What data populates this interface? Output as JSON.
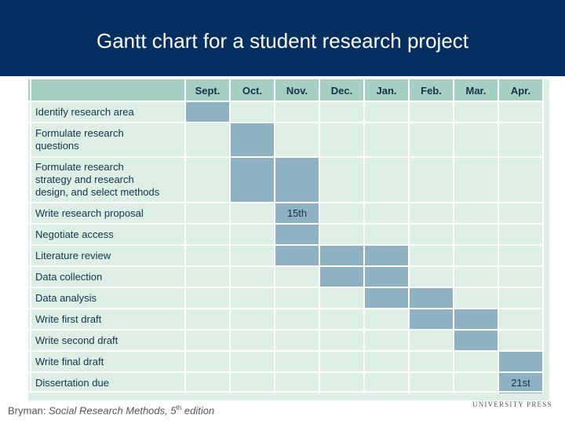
{
  "slide": {
    "title": "Gantt chart for a student research project"
  },
  "chart_data": {
    "type": "table",
    "months": [
      "Sept.",
      "Oct.",
      "Nov.",
      "Dec.",
      "Jan.",
      "Feb.",
      "Mar.",
      "Apr."
    ],
    "tasks": [
      {
        "label": "Identify research area",
        "months": [
          "Sept."
        ]
      },
      {
        "label": "Formulate research\nquestions",
        "months": [
          "Oct."
        ]
      },
      {
        "label": "Formulate research\nstrategy and research\ndesign, and select methods",
        "months": [
          "Oct.",
          "Nov."
        ]
      },
      {
        "label": "Write research proposal",
        "months": [
          "Nov."
        ],
        "marker": "15th"
      },
      {
        "label": "Negotiate access",
        "months": [
          "Nov."
        ]
      },
      {
        "label": "Literature review",
        "months": [
          "Nov.",
          "Dec.",
          "Jan."
        ]
      },
      {
        "label": "Data collection",
        "months": [
          "Dec.",
          "Jan."
        ]
      },
      {
        "label": "Data analysis",
        "months": [
          "Jan.",
          "Feb."
        ]
      },
      {
        "label": "Write first draft",
        "months": [
          "Feb.",
          "Mar."
        ]
      },
      {
        "label": "Write second draft",
        "months": [
          "Mar."
        ]
      },
      {
        "label": "Write final draft",
        "months": [
          "Apr."
        ]
      },
      {
        "label": "Dissertation due",
        "months": [
          "Apr."
        ],
        "marker": "21st"
      }
    ],
    "colors": {
      "header_bg": "#a6cfc3",
      "grid_bg": "#ddeee5",
      "bar": "#8eb2c1",
      "text": "#14324a"
    }
  },
  "footer": {
    "citation_author": "Bryman: ",
    "citation_title": "Social Research Methods, 5",
    "citation_sup": "th",
    "citation_suffix": " edition",
    "publisher": "UNIVERSITY PRESS"
  }
}
